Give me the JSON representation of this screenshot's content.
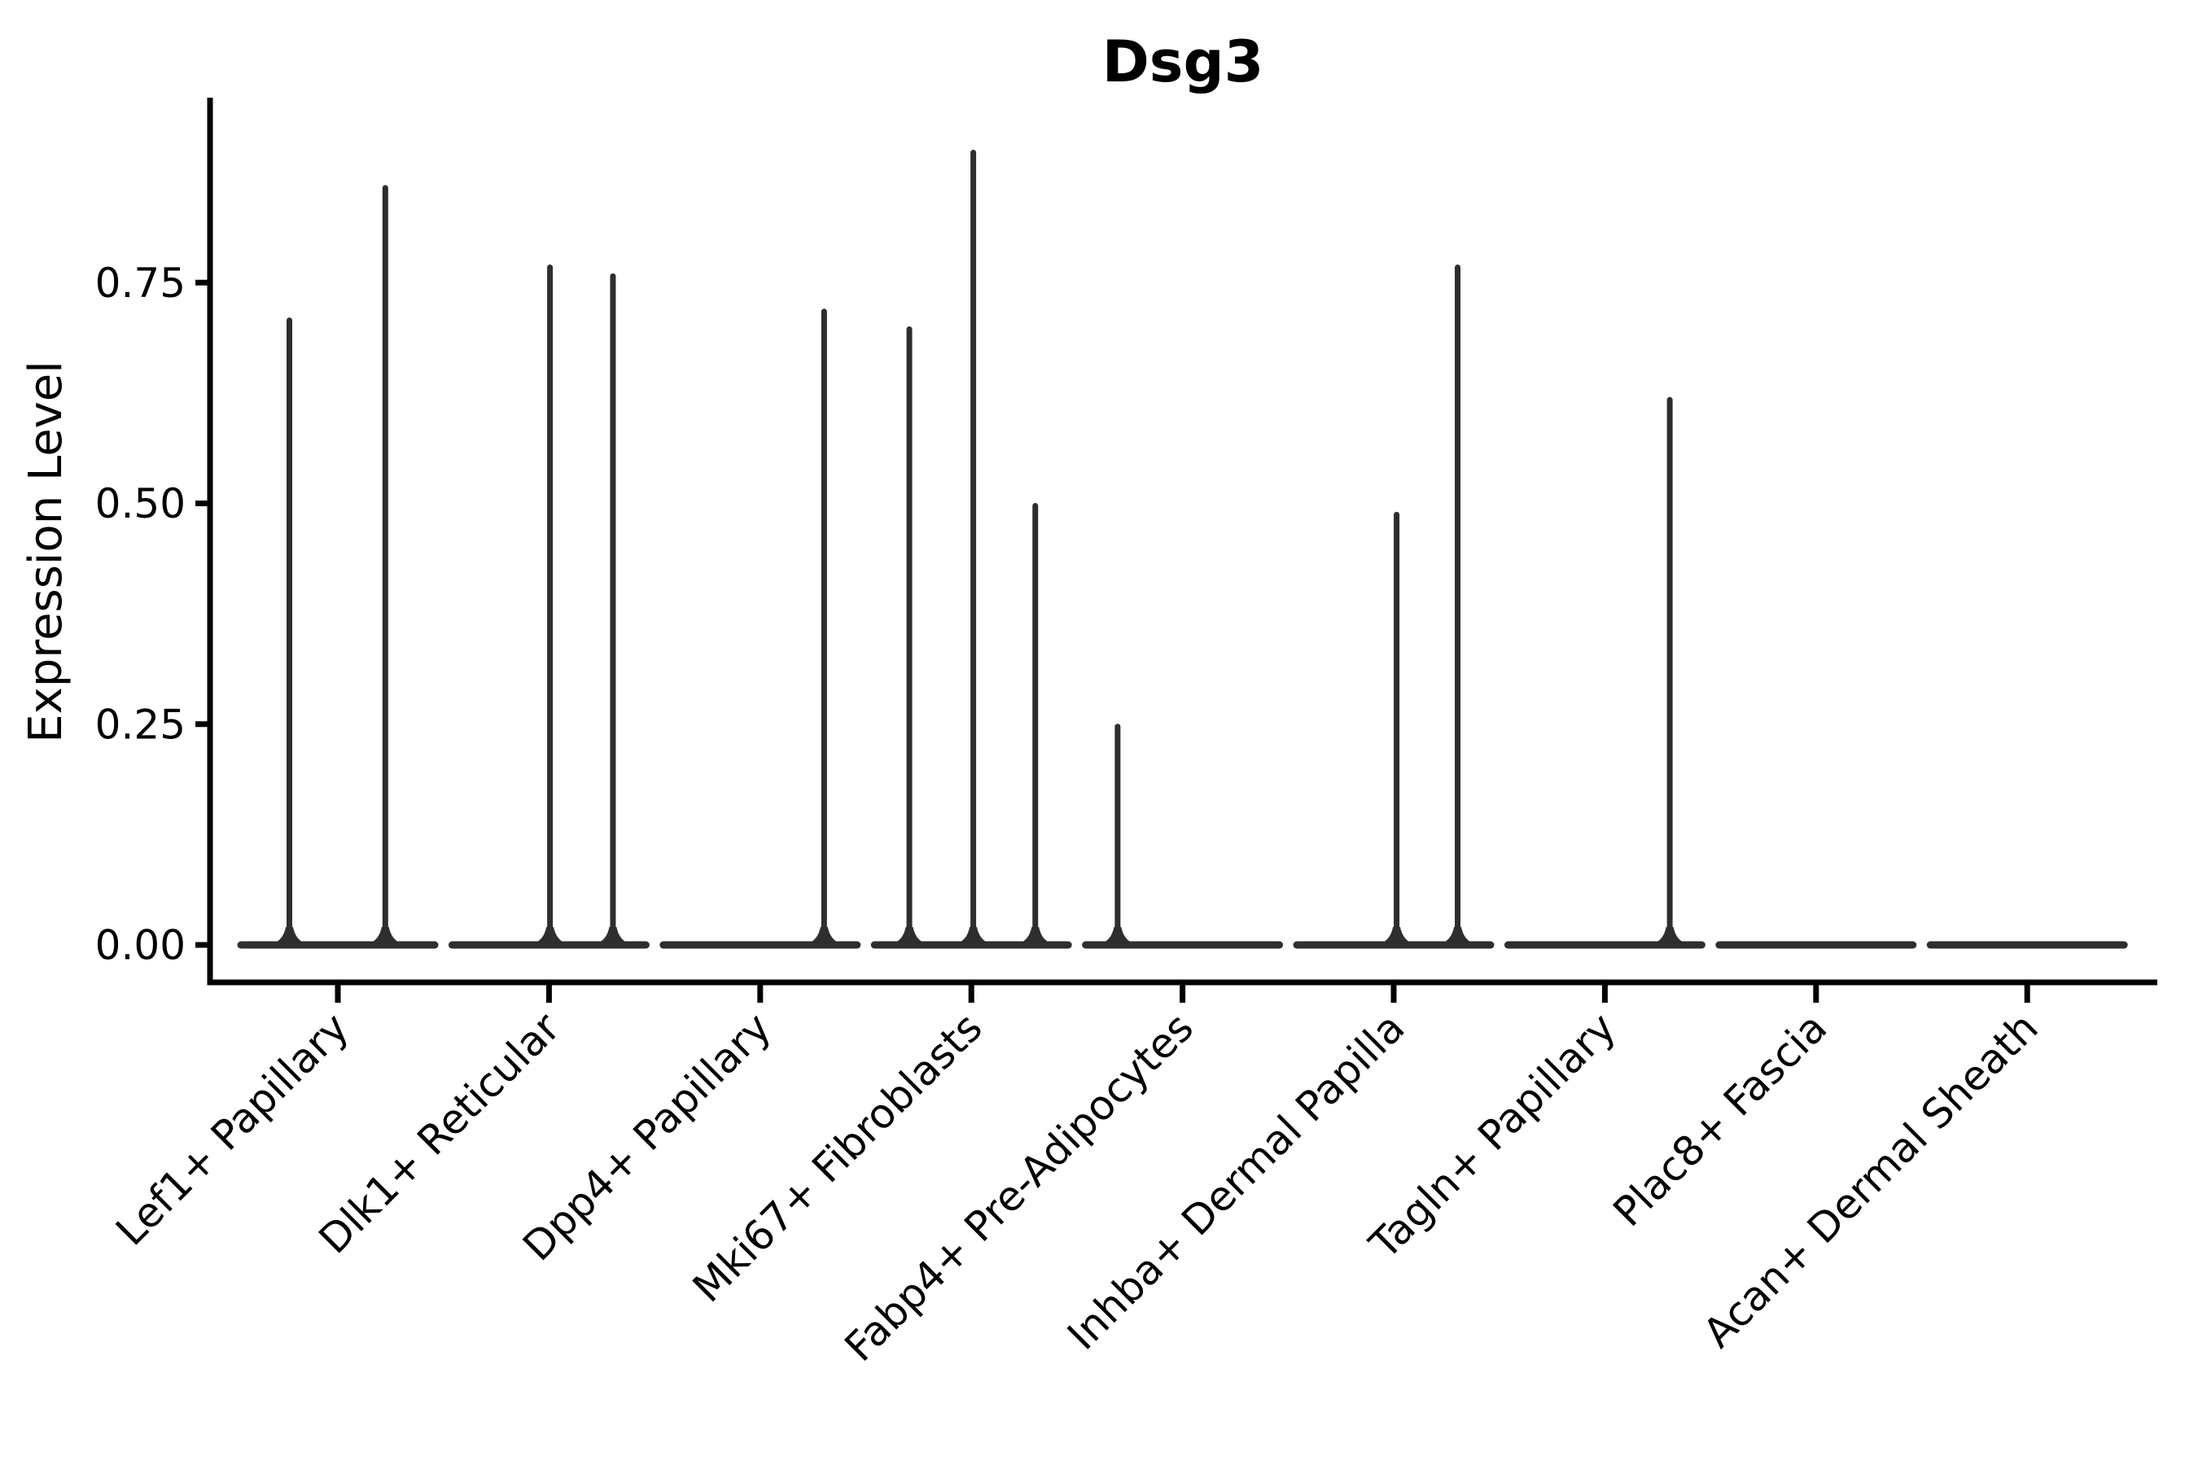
{
  "chart_data": {
    "type": "violin",
    "title": "Dsg3",
    "ylabel": "Expression Level",
    "xlabel": "",
    "legend": null,
    "grid": false,
    "x_tick_rotation_deg": 45,
    "ylim": [
      -0.045,
      0.96
    ],
    "yticks": [
      {
        "value": 0.0,
        "label": "0.00"
      },
      {
        "value": 0.25,
        "label": "0.25"
      },
      {
        "value": 0.5,
        "label": "0.50"
      },
      {
        "value": 0.75,
        "label": "0.75"
      }
    ],
    "categories": [
      "Lef1+ Papillary",
      "Dlk1+ Reticular",
      "Dpp4+ Papillary",
      "Mki67+ Fibroblasts",
      "Fabp4+ Pre-Adipocytes",
      "Inhba+ Dermal Papilla",
      "Tagln+ Papillary",
      "Plac8+ Fascia",
      "Acan+ Dermal Sheath"
    ],
    "violins": [
      {
        "category": "Lef1+ Papillary",
        "spikes": [
          {
            "offset": -0.5,
            "value": 0.71
          },
          {
            "offset": 0.49,
            "value": 0.86
          }
        ]
      },
      {
        "category": "Dlk1+ Reticular",
        "spikes": [
          {
            "offset": 0.01,
            "value": 0.77
          },
          {
            "offset": 0.66,
            "value": 0.76
          }
        ]
      },
      {
        "category": "Dpp4+ Papillary",
        "spikes": [
          {
            "offset": 0.66,
            "value": 0.72
          }
        ]
      },
      {
        "category": "Mki67+ Fibroblasts",
        "spikes": [
          {
            "offset": -0.64,
            "value": 0.7
          },
          {
            "offset": 0.02,
            "value": 0.9
          },
          {
            "offset": 0.66,
            "value": 0.5
          }
        ]
      },
      {
        "category": "Fabp4+ Pre-Adipocytes",
        "spikes": [
          {
            "offset": -0.67,
            "value": 0.25
          }
        ]
      },
      {
        "category": "Inhba+ Dermal Papilla",
        "spikes": [
          {
            "offset": 0.03,
            "value": 0.49
          },
          {
            "offset": 0.66,
            "value": 0.77
          }
        ]
      },
      {
        "category": "Tagln+ Papillary",
        "spikes": [
          {
            "offset": 0.67,
            "value": 0.62
          }
        ]
      },
      {
        "category": "Plac8+ Fascia",
        "spikes": []
      },
      {
        "category": "Acan+ Dermal Sheath",
        "spikes": []
      }
    ],
    "colors": {
      "ink": "#2e2e2e",
      "axis": "#000000",
      "background": "#ffffff"
    }
  }
}
